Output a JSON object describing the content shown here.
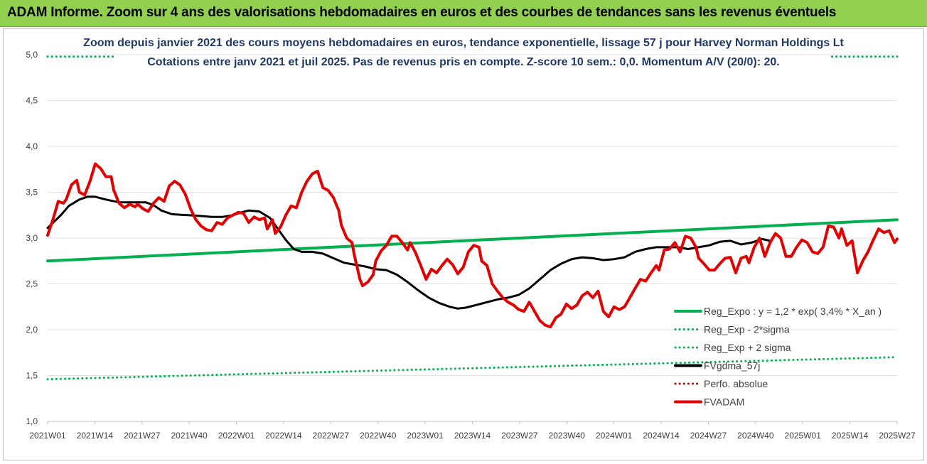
{
  "banner": {
    "title": "ADAM Informe. Zoom sur 4 ans des valorisations hebdomadaires en euros et des courbes de tendances sans les revenus éventuels",
    "bg_color": "#92d050"
  },
  "chart_data": {
    "type": "line",
    "title": "Zoom depuis janvier 2021 des cours moyens hebdomadaires en euros, tendance exponentielle, lissage 57 j pour Harvey Norman Holdings Lt",
    "subtitle": "Cotations entre janv 2021 et juil 2025. Pas de revenus pris en compte. Z-score 10 sem.: 0,0. Momentum A/V (20/0): 20.",
    "xlabel": "",
    "ylabel": "",
    "ylim": [
      1.0,
      5.0
    ],
    "y_ticks": [
      "1,0",
      "1,5",
      "2,0",
      "2,5",
      "3,0",
      "3,5",
      "4,0",
      "4,5",
      "5,0"
    ],
    "x_ticks": [
      "2021W01",
      "2021W14",
      "2021W27",
      "2021W40",
      "2022W01",
      "2022W14",
      "2022W27",
      "2022W40",
      "2023W01",
      "2023W14",
      "2023W27",
      "2023W40",
      "2024W01",
      "2024W14",
      "2024W27",
      "2024W40",
      "2025W01",
      "2025W14",
      "2025W27"
    ],
    "x_range_weeks": [
      0,
      235
    ],
    "grid": true,
    "legend_position": "bottom-right",
    "series": [
      {
        "name": "Reg_Expo : y = 1,2 * exp( 3,4% *  X_an )",
        "style": "solid",
        "color": "#00b050",
        "points": [
          [
            0,
            2.75
          ],
          [
            235,
            3.2
          ]
        ]
      },
      {
        "name": "Reg_Exp - 2*sigma",
        "style": "dotted",
        "color": "#00b050",
        "points": [
          [
            0,
            1.46
          ],
          [
            235,
            1.7
          ]
        ]
      },
      {
        "name": "Reg_Exp + 2 sigma",
        "style": "dotted",
        "color": "#00b050",
        "note_range": "drawn only at chart edges (above plot area top)",
        "points": [
          [
            0,
            4.98
          ],
          [
            18,
            4.98
          ],
          [
            217,
            4.98
          ],
          [
            235,
            4.98
          ]
        ]
      },
      {
        "name": "FVgdma_57j",
        "style": "solid",
        "color": "#000000",
        "points": [
          [
            0,
            3.11
          ],
          [
            5,
            3.25
          ],
          [
            8,
            3.35
          ],
          [
            12,
            3.42
          ],
          [
            15,
            3.45
          ],
          [
            18,
            3.45
          ],
          [
            22,
            3.42
          ],
          [
            27,
            3.39
          ],
          [
            33,
            3.39
          ],
          [
            37,
            3.39
          ],
          [
            40,
            3.36
          ],
          [
            43,
            3.3
          ],
          [
            47,
            3.26
          ],
          [
            53,
            3.25
          ],
          [
            58,
            3.24
          ],
          [
            62,
            3.23
          ],
          [
            66,
            3.23
          ],
          [
            70,
            3.25
          ],
          [
            73,
            3.28
          ],
          [
            76,
            3.3
          ],
          [
            80,
            3.29
          ],
          [
            84,
            3.22
          ],
          [
            87,
            3.1
          ],
          [
            90,
            2.98
          ],
          [
            93,
            2.88
          ],
          [
            96,
            2.85
          ],
          [
            100,
            2.85
          ],
          [
            104,
            2.83
          ],
          [
            108,
            2.78
          ],
          [
            112,
            2.73
          ],
          [
            116,
            2.71
          ],
          [
            120,
            2.69
          ],
          [
            124,
            2.66
          ],
          [
            128,
            2.65
          ],
          [
            132,
            2.6
          ],
          [
            136,
            2.52
          ],
          [
            140,
            2.43
          ],
          [
            144,
            2.35
          ],
          [
            148,
            2.29
          ],
          [
            152,
            2.25
          ],
          [
            155,
            2.23
          ],
          [
            158,
            2.24
          ],
          [
            162,
            2.27
          ],
          [
            166,
            2.3
          ],
          [
            170,
            2.33
          ],
          [
            174,
            2.35
          ],
          [
            178,
            2.38
          ],
          [
            182,
            2.45
          ],
          [
            186,
            2.55
          ],
          [
            190,
            2.65
          ],
          [
            194,
            2.72
          ],
          [
            198,
            2.77
          ],
          [
            202,
            2.79
          ],
          [
            206,
            2.78
          ],
          [
            210,
            2.76
          ],
          [
            214,
            2.77
          ],
          [
            218,
            2.79
          ],
          [
            222,
            2.85
          ],
          [
            226,
            2.88
          ],
          [
            230,
            2.9
          ],
          [
            234,
            2.9
          ],
          [
            238,
            2.9
          ],
          [
            242,
            2.88
          ],
          [
            246,
            2.9
          ],
          [
            250,
            2.92
          ],
          [
            254,
            2.96
          ],
          [
            258,
            2.97
          ],
          [
            262,
            2.93
          ],
          [
            266,
            2.95
          ],
          [
            270,
            2.99
          ],
          [
            273,
            2.97
          ]
        ]
      },
      {
        "name": "Perfo. absolue",
        "style": "dotted",
        "color": "#c00000",
        "points": []
      },
      {
        "name": "FVADAM",
        "style": "solid",
        "color": "#e00000",
        "points": [
          [
            0,
            3.03
          ],
          [
            2,
            3.2
          ],
          [
            4,
            3.4
          ],
          [
            6,
            3.38
          ],
          [
            7,
            3.42
          ],
          [
            9,
            3.58
          ],
          [
            11,
            3.63
          ],
          [
            12,
            3.5
          ],
          [
            14,
            3.47
          ],
          [
            16,
            3.62
          ],
          [
            18,
            3.81
          ],
          [
            20,
            3.76
          ],
          [
            22,
            3.67
          ],
          [
            24,
            3.67
          ],
          [
            25,
            3.52
          ],
          [
            27,
            3.38
          ],
          [
            29,
            3.33
          ],
          [
            31,
            3.37
          ],
          [
            33,
            3.34
          ],
          [
            34,
            3.37
          ],
          [
            36,
            3.32
          ],
          [
            38,
            3.29
          ],
          [
            40,
            3.38
          ],
          [
            42,
            3.44
          ],
          [
            44,
            3.4
          ],
          [
            46,
            3.57
          ],
          [
            48,
            3.62
          ],
          [
            50,
            3.58
          ],
          [
            52,
            3.48
          ],
          [
            54,
            3.32
          ],
          [
            56,
            3.2
          ],
          [
            58,
            3.13
          ],
          [
            60,
            3.09
          ],
          [
            62,
            3.08
          ],
          [
            64,
            3.17
          ],
          [
            66,
            3.15
          ],
          [
            68,
            3.22
          ],
          [
            70,
            3.25
          ],
          [
            72,
            3.28
          ],
          [
            74,
            3.27
          ],
          [
            76,
            3.17
          ],
          [
            78,
            3.23
          ],
          [
            80,
            3.2
          ],
          [
            82,
            3.22
          ],
          [
            83,
            3.1
          ],
          [
            85,
            3.2
          ],
          [
            86,
            3.05
          ],
          [
            88,
            3.12
          ],
          [
            90,
            3.25
          ],
          [
            92,
            3.35
          ],
          [
            94,
            3.33
          ],
          [
            96,
            3.5
          ],
          [
            98,
            3.62
          ],
          [
            100,
            3.7
          ],
          [
            102,
            3.73
          ],
          [
            104,
            3.55
          ],
          [
            106,
            3.52
          ],
          [
            108,
            3.44
          ],
          [
            110,
            3.3
          ],
          [
            111,
            3.14
          ],
          [
            113,
            3.0
          ],
          [
            115,
            2.95
          ],
          [
            116,
            2.8
          ],
          [
            118,
            2.55
          ],
          [
            119,
            2.48
          ],
          [
            121,
            2.52
          ],
          [
            123,
            2.6
          ],
          [
            124,
            2.75
          ],
          [
            126,
            2.86
          ],
          [
            128,
            2.92
          ],
          [
            130,
            3.02
          ],
          [
            132,
            3.02
          ],
          [
            134,
            2.95
          ],
          [
            136,
            2.87
          ],
          [
            137,
            2.95
          ],
          [
            139,
            2.84
          ],
          [
            141,
            2.7
          ],
          [
            143,
            2.55
          ],
          [
            145,
            2.66
          ],
          [
            147,
            2.62
          ],
          [
            149,
            2.7
          ],
          [
            151,
            2.77
          ],
          [
            153,
            2.71
          ],
          [
            155,
            2.61
          ],
          [
            157,
            2.68
          ],
          [
            159,
            2.85
          ],
          [
            161,
            2.92
          ],
          [
            163,
            2.9
          ],
          [
            164,
            2.75
          ],
          [
            166,
            2.7
          ],
          [
            168,
            2.5
          ],
          [
            170,
            2.42
          ],
          [
            172,
            2.35
          ],
          [
            174,
            2.3
          ],
          [
            176,
            2.27
          ],
          [
            178,
            2.22
          ],
          [
            180,
            2.2
          ],
          [
            182,
            2.3
          ],
          [
            184,
            2.2
          ],
          [
            186,
            2.1
          ],
          [
            188,
            2.05
          ],
          [
            190,
            2.03
          ],
          [
            192,
            2.13
          ],
          [
            194,
            2.17
          ],
          [
            196,
            2.28
          ],
          [
            198,
            2.23
          ],
          [
            200,
            2.27
          ],
          [
            202,
            2.37
          ],
          [
            204,
            2.41
          ],
          [
            206,
            2.35
          ],
          [
            208,
            2.42
          ],
          [
            210,
            2.2
          ],
          [
            212,
            2.14
          ],
          [
            214,
            2.25
          ],
          [
            216,
            2.22
          ],
          [
            218,
            2.25
          ],
          [
            220,
            2.35
          ],
          [
            222,
            2.45
          ],
          [
            224,
            2.55
          ],
          [
            226,
            2.53
          ],
          [
            228,
            2.62
          ],
          [
            230,
            2.7
          ],
          [
            231,
            2.65
          ],
          [
            233,
            2.87
          ],
          [
            235,
            2.88
          ],
          [
            237,
            2.95
          ],
          [
            239,
            2.85
          ],
          [
            241,
            3.02
          ],
          [
            243,
            3.0
          ],
          [
            245,
            2.9
          ],
          [
            246,
            2.78
          ],
          [
            248,
            2.72
          ],
          [
            250,
            2.65
          ],
          [
            252,
            2.65
          ],
          [
            254,
            2.72
          ],
          [
            256,
            2.78
          ],
          [
            258,
            2.79
          ],
          [
            260,
            2.62
          ],
          [
            262,
            2.78
          ],
          [
            264,
            2.8
          ],
          [
            265,
            2.73
          ],
          [
            267,
            2.9
          ],
          [
            269,
            3.0
          ],
          [
            271,
            2.8
          ],
          [
            273,
            2.95
          ],
          [
            275,
            3.05
          ],
          [
            277,
            3.0
          ],
          [
            279,
            2.8
          ],
          [
            281,
            2.8
          ],
          [
            283,
            2.9
          ],
          [
            285,
            2.98
          ],
          [
            287,
            2.95
          ],
          [
            289,
            2.85
          ],
          [
            291,
            2.83
          ],
          [
            293,
            2.9
          ],
          [
            295,
            3.13
          ],
          [
            297,
            3.12
          ],
          [
            299,
            3.0
          ],
          [
            300,
            3.1
          ],
          [
            302,
            2.92
          ],
          [
            304,
            2.97
          ],
          [
            306,
            2.62
          ],
          [
            308,
            2.75
          ],
          [
            310,
            2.85
          ],
          [
            312,
            2.98
          ],
          [
            314,
            3.1
          ],
          [
            316,
            3.06
          ],
          [
            318,
            3.08
          ],
          [
            320,
            2.95
          ],
          [
            321,
            2.99
          ]
        ]
      }
    ]
  }
}
